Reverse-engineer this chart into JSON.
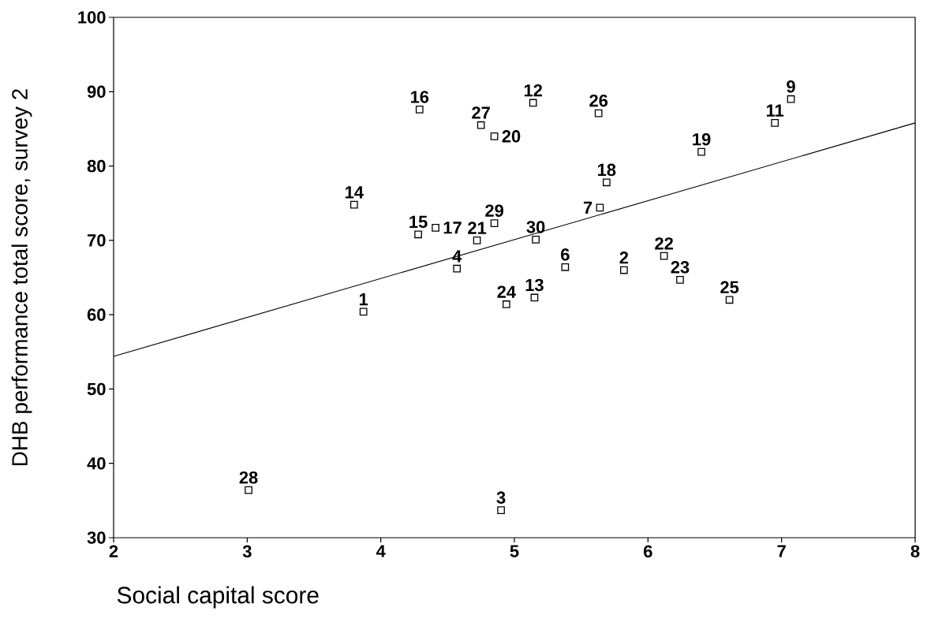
{
  "chart_data": {
    "type": "scatter",
    "xlabel": "Social capital score",
    "ylabel": "DHB performance total score, survey 2",
    "xlim": [
      2,
      8
    ],
    "ylim": [
      30,
      100
    ],
    "xticks": [
      2,
      3,
      4,
      5,
      6,
      7,
      8
    ],
    "yticks": [
      30,
      40,
      50,
      60,
      70,
      80,
      90,
      100
    ],
    "marker": "square",
    "series": [
      {
        "color": "#000000",
        "x": [
          3.87,
          5.82,
          4.9,
          4.57,
          5.38,
          5.64,
          7.07,
          6.95,
          5.14,
          5.15,
          3.8,
          4.28,
          4.29,
          4.41,
          5.69,
          6.4,
          4.85,
          4.72,
          6.12,
          6.24,
          4.94,
          6.61,
          5.63,
          4.75,
          3.01,
          4.85,
          5.16
        ],
        "values": [
          60.4,
          66.0,
          33.7,
          66.2,
          66.4,
          74.4,
          89.0,
          85.8,
          88.5,
          62.3,
          74.8,
          70.8,
          87.6,
          71.7,
          77.8,
          81.9,
          84.0,
          70.0,
          67.9,
          64.7,
          61.4,
          62.0,
          87.1,
          85.5,
          36.4,
          72.3,
          70.1
        ]
      },
      {
        "type": "line",
        "color": "#000000",
        "marker": "none",
        "x": [
          2,
          8
        ],
        "values": [
          54.4,
          85.8
        ]
      }
    ],
    "annotations": [
      {
        "text": "1",
        "x": 3.87,
        "y": 60.4
      },
      {
        "text": "2",
        "x": 5.82,
        "y": 66.0
      },
      {
        "text": "3",
        "x": 4.9,
        "y": 33.7
      },
      {
        "text": "4",
        "x": 4.57,
        "y": 66.2
      },
      {
        "text": "6",
        "x": 5.38,
        "y": 66.4
      },
      {
        "text": "7",
        "x": 5.64,
        "y": 74.4
      },
      {
        "text": "9",
        "x": 7.07,
        "y": 89.0
      },
      {
        "text": "11",
        "x": 6.95,
        "y": 85.8
      },
      {
        "text": "12",
        "x": 5.14,
        "y": 88.5
      },
      {
        "text": "13",
        "x": 5.15,
        "y": 62.3
      },
      {
        "text": "14",
        "x": 3.8,
        "y": 74.8
      },
      {
        "text": "15",
        "x": 4.28,
        "y": 70.8
      },
      {
        "text": "16",
        "x": 4.29,
        "y": 87.6
      },
      {
        "text": "17",
        "x": 4.41,
        "y": 71.7
      },
      {
        "text": "18",
        "x": 5.69,
        "y": 77.8
      },
      {
        "text": "19",
        "x": 6.4,
        "y": 81.9
      },
      {
        "text": "20",
        "x": 4.85,
        "y": 84.0
      },
      {
        "text": "21",
        "x": 4.72,
        "y": 70.0
      },
      {
        "text": "22",
        "x": 6.12,
        "y": 67.9
      },
      {
        "text": "23",
        "x": 6.24,
        "y": 64.7
      },
      {
        "text": "24",
        "x": 4.94,
        "y": 61.4
      },
      {
        "text": "25",
        "x": 6.61,
        "y": 62.0
      },
      {
        "text": "26",
        "x": 5.63,
        "y": 87.1
      },
      {
        "text": "27",
        "x": 4.75,
        "y": 85.5
      },
      {
        "text": "28",
        "x": 3.01,
        "y": 36.4
      },
      {
        "text": "29",
        "x": 4.85,
        "y": 72.3
      },
      {
        "text": "30",
        "x": 5.16,
        "y": 70.1
      }
    ]
  }
}
